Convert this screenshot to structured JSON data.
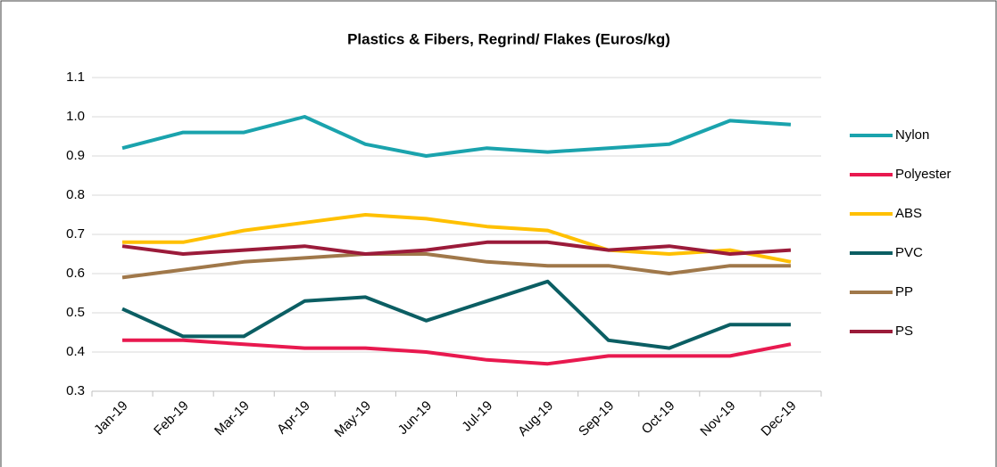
{
  "chart_data": {
    "type": "line",
    "title": "Plastics & Fibers, Regrind/ Flakes (Euros/kg)",
    "categories": [
      "Jan-19",
      "Feb-19",
      "Mar-19",
      "Apr-19",
      "May-19",
      "Jun-19",
      "Jul-19",
      "Aug-19",
      "Sep-19",
      "Oct-19",
      "Nov-19",
      "Dec-19"
    ],
    "series": [
      {
        "name": "Nylon",
        "color": "#1aa3ad",
        "values": [
          0.92,
          0.96,
          0.96,
          1.0,
          0.93,
          0.9,
          0.92,
          0.91,
          0.92,
          0.93,
          0.99,
          0.98
        ]
      },
      {
        "name": "Polyester",
        "color": "#e8194f",
        "values": [
          0.43,
          0.43,
          0.42,
          0.41,
          0.41,
          0.4,
          0.38,
          0.37,
          0.39,
          0.39,
          0.39,
          0.42
        ]
      },
      {
        "name": "ABS",
        "color": "#ffc000",
        "values": [
          0.68,
          0.68,
          0.71,
          0.73,
          0.75,
          0.74,
          0.72,
          0.71,
          0.66,
          0.65,
          0.66,
          0.63
        ]
      },
      {
        "name": "PVC",
        "color": "#0b5e63",
        "values": [
          0.51,
          0.44,
          0.44,
          0.53,
          0.54,
          0.48,
          0.53,
          0.58,
          0.43,
          0.41,
          0.47,
          0.47
        ]
      },
      {
        "name": "PP",
        "color": "#a0784a",
        "values": [
          0.59,
          0.61,
          0.63,
          0.64,
          0.65,
          0.65,
          0.63,
          0.62,
          0.62,
          0.6,
          0.62,
          0.62
        ]
      },
      {
        "name": "PS",
        "color": "#9b1b3a",
        "values": [
          0.67,
          0.65,
          0.66,
          0.67,
          0.65,
          0.66,
          0.68,
          0.68,
          0.66,
          0.67,
          0.65,
          0.66
        ]
      }
    ],
    "ylim": [
      0.3,
      1.1
    ],
    "yticks": [
      0.3,
      0.4,
      0.5,
      0.6,
      0.7,
      0.8,
      0.9,
      {
        "value": 1.0,
        "label": "1.0"
      },
      1.1
    ],
    "grid": true,
    "legend": "right"
  }
}
